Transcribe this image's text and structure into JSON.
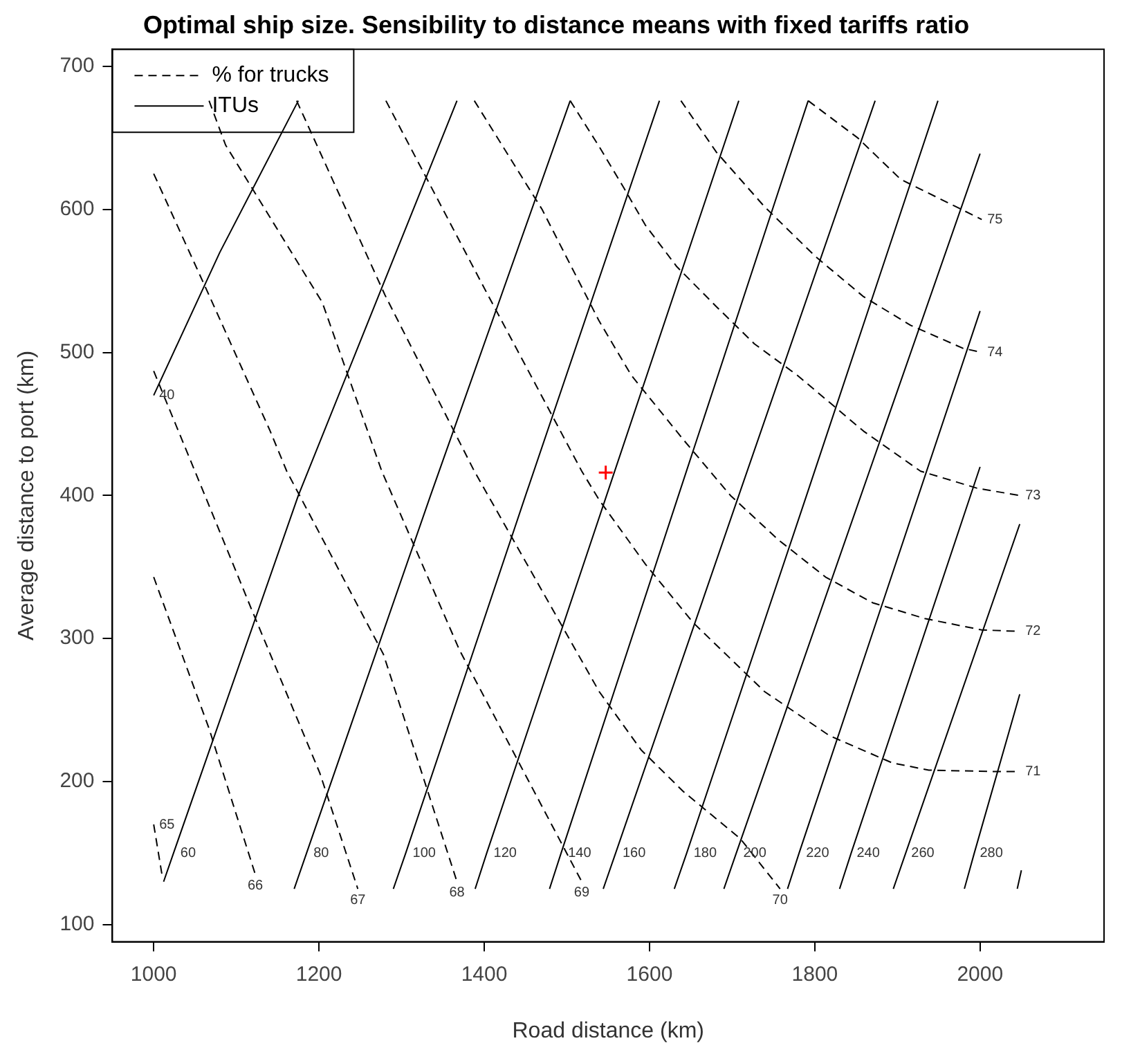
{
  "chart_data": {
    "type": "line",
    "title": "Optimal ship size. Sensibility to distance means with fixed tariffs ratio",
    "xlabel": "Road distance (km)",
    "ylabel": "Average distance to port (km)",
    "xlim": [
      950,
      2150
    ],
    "ylim": [
      88,
      712
    ],
    "xticks": [
      1000,
      1200,
      1400,
      1600,
      1800,
      2000
    ],
    "yticks": [
      100,
      200,
      300,
      400,
      500,
      600,
      700
    ],
    "grid": false,
    "legend": "top left",
    "marker": "none",
    "series": [
      {
        "name": "% for trucks",
        "type": "line",
        "line_style": "dashed",
        "color": "#000000",
        "x": [
          1000,
          1010
        ],
        "values": [
          170,
          135
        ]
      },
      {
        "type": "line",
        "line_style": "dashed",
        "color": "#000000",
        "x": [
          1000,
          1067,
          1123
        ],
        "values": [
          343,
          237,
          135
        ]
      },
      {
        "type": "line",
        "line_style": "dashed",
        "color": "#000000",
        "x": [
          1000,
          1062,
          1118,
          1201,
          1247
        ],
        "values": [
          487,
          400,
          321,
          206,
          125
        ]
      },
      {
        "type": "line",
        "line_style": "dashed",
        "color": "#000000",
        "x": [
          1000,
          1067,
          1141,
          1161,
          1278,
          1367
        ],
        "values": [
          625,
          540,
          445,
          417,
          289,
          130
        ]
      },
      {
        "type": "line",
        "line_style": "dashed",
        "color": "#000000",
        "x": [
          1067,
          1087,
          1204,
          1276,
          1370,
          1518
        ],
        "values": [
          676,
          645,
          535,
          417,
          292,
          130
        ]
      },
      {
        "type": "line",
        "line_style": "dashed",
        "color": "#000000",
        "x": [
          1173,
          1280,
          1388,
          1539,
          1590,
          1641,
          1710,
          1758
        ],
        "values": [
          676,
          540,
          417,
          263,
          222,
          193,
          160,
          125
        ]
      },
      {
        "type": "line",
        "line_style": "dashed",
        "color": "#000000",
        "x": [
          1281,
          1400,
          1518,
          1539,
          1595,
          1653,
          1739,
          1818,
          1894,
          1938,
          2019,
          2048
        ],
        "values": [
          676,
          545,
          417,
          397,
          352,
          311,
          263,
          232,
          213,
          208,
          207,
          207
        ]
      },
      {
        "type": "line",
        "line_style": "dashed",
        "color": "#000000",
        "x": [
          1388,
          1470,
          1539,
          1578,
          1641,
          1698,
          1756,
          1813,
          1870,
          1933,
          2002,
          2048
        ],
        "values": [
          676,
          600,
          522,
          484,
          439,
          400,
          369,
          343,
          325,
          314,
          306,
          305
        ]
      },
      {
        "type": "line",
        "line_style": "dashed",
        "color": "#000000",
        "x": [
          1504,
          1539,
          1569,
          1595,
          1633,
          1681,
          1727,
          1779,
          1859,
          1928,
          1997,
          2048
        ],
        "values": [
          676,
          644,
          615,
          589,
          560,
          532,
          506,
          484,
          445,
          417,
          405,
          400
        ]
      },
      {
        "type": "line",
        "line_style": "dashed",
        "color": "#000000",
        "x": [
          1638,
          1681,
          1739,
          1801,
          1859,
          1916,
          1979,
          2002
        ],
        "values": [
          676,
          640,
          602,
          567,
          539,
          519,
          503,
          500
        ]
      },
      {
        "type": "line",
        "line_style": "dashed",
        "color": "#000000",
        "x": [
          1792,
          1852,
          1904,
          2002
        ],
        "values": [
          676,
          650,
          621,
          593
        ]
      },
      {
        "name": "ITUs",
        "type": "line",
        "line_style": "solid",
        "color": "#000000",
        "x": [
          1000,
          1080,
          1175
        ],
        "values": [
          470,
          570,
          676
        ]
      },
      {
        "type": "line",
        "line_style": "solid",
        "color": "#000000",
        "x": [
          1012,
          1024,
          1175,
          1367
        ],
        "values": [
          130,
          150,
          400,
          676
        ]
      },
      {
        "type": "line",
        "line_style": "solid",
        "color": "#000000",
        "x": [
          1170,
          1185,
          1335,
          1504
        ],
        "values": [
          125,
          150,
          400,
          676
        ]
      },
      {
        "type": "line",
        "line_style": "solid",
        "color": "#000000",
        "x": [
          1290,
          1305,
          1450,
          1612
        ],
        "values": [
          125,
          150,
          400,
          676
        ]
      },
      {
        "type": "line",
        "line_style": "solid",
        "color": "#000000",
        "x": [
          1389,
          1403,
          1548,
          1708
        ],
        "values": [
          125,
          150,
          400,
          676
        ]
      },
      {
        "type": "line",
        "line_style": "solid",
        "color": "#000000",
        "x": [
          1479,
          1493,
          1635,
          1792
        ],
        "values": [
          125,
          150,
          400,
          676
        ]
      },
      {
        "type": "line",
        "line_style": "solid",
        "color": "#000000",
        "x": [
          1544,
          1559,
          1708,
          1873
        ],
        "values": [
          125,
          150,
          400,
          676
        ]
      },
      {
        "type": "line",
        "line_style": "solid",
        "color": "#000000",
        "x": [
          1630,
          1645,
          1790,
          1949
        ],
        "values": [
          125,
          150,
          400,
          676
        ]
      },
      {
        "type": "line",
        "line_style": "solid",
        "color": "#000000",
        "x": [
          1690,
          1705,
          2000
        ],
        "values": [
          125,
          150,
          639
        ]
      },
      {
        "type": "line",
        "line_style": "solid",
        "color": "#000000",
        "x": [
          1767,
          1781,
          2000
        ],
        "values": [
          125,
          150,
          529
        ]
      },
      {
        "type": "line",
        "line_style": "solid",
        "color": "#000000",
        "x": [
          1830,
          1844,
          2000
        ],
        "values": [
          125,
          150,
          420
        ]
      },
      {
        "type": "line",
        "line_style": "solid",
        "color": "#000000",
        "x": [
          1895,
          1910,
          2048
        ],
        "values": [
          125,
          150,
          380
        ]
      },
      {
        "type": "line",
        "line_style": "solid",
        "color": "#000000",
        "x": [
          1981,
          1993,
          2048
        ],
        "values": [
          125,
          150,
          261
        ]
      },
      {
        "type": "line",
        "line_style": "solid",
        "color": "#000000",
        "x": [
          2045,
          2050
        ],
        "values": [
          125,
          138
        ]
      },
      {
        "type": "scatter",
        "marker": "cross",
        "color": "#ff0000",
        "x": [
          1547
        ],
        "values": [
          416
        ]
      }
    ],
    "annotations": [
      {
        "text": "40",
        "x": 1000,
        "y": 470
      },
      {
        "text": "60",
        "x": 1024,
        "y": 150
      },
      {
        "text": "80",
        "x": 1185,
        "y": 150
      },
      {
        "text": "100",
        "x": 1305,
        "y": 150
      },
      {
        "text": "120",
        "x": 1403,
        "y": 150
      },
      {
        "text": "140",
        "x": 1493,
        "y": 150
      },
      {
        "text": "160",
        "x": 1559,
        "y": 150
      },
      {
        "text": "180",
        "x": 1645,
        "y": 150
      },
      {
        "text": "200",
        "x": 1705,
        "y": 150
      },
      {
        "text": "220",
        "x": 1781,
        "y": 150
      },
      {
        "text": "240",
        "x": 1844,
        "y": 150
      },
      {
        "text": "260",
        "x": 1910,
        "y": 150
      },
      {
        "text": "280",
        "x": 1993,
        "y": 150
      },
      {
        "text": "65",
        "x": 1000,
        "y": 170
      },
      {
        "text": "66",
        "x": 1123,
        "y": 135
      },
      {
        "text": "67",
        "x": 1247,
        "y": 125
      },
      {
        "text": "68",
        "x": 1367,
        "y": 130
      },
      {
        "text": "69",
        "x": 1518,
        "y": 130
      },
      {
        "text": "70",
        "x": 1758,
        "y": 125
      },
      {
        "text": "71",
        "x": 2048,
        "y": 207
      },
      {
        "text": "72",
        "x": 2048,
        "y": 305
      },
      {
        "text": "73",
        "x": 2048,
        "y": 400
      },
      {
        "text": "74",
        "x": 2002,
        "y": 500
      },
      {
        "text": "75",
        "x": 2002,
        "y": 593
      }
    ]
  }
}
